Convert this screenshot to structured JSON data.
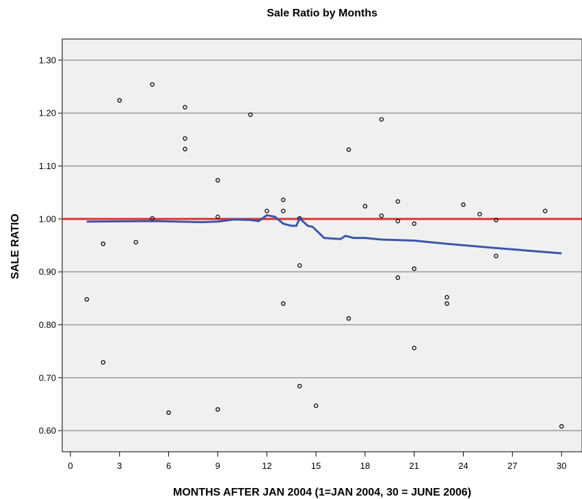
{
  "chart_data": {
    "type": "scatter",
    "title": "Sale Ratio by Months",
    "x_label": "MONTHS AFTER JAN 2004 (1=JAN 2004, 30 = JUNE 2006)",
    "y_label": "SALE RATIO",
    "xlim": [
      -0.5,
      31.25
    ],
    "ylim": [
      0.56,
      1.34
    ],
    "xticks": [
      0,
      3,
      6,
      9,
      12,
      15,
      18,
      21,
      24,
      27,
      30
    ],
    "yticks": [
      {
        "value": 0.6,
        "label": "0.60"
      },
      {
        "value": 0.7,
        "label": "0.70"
      },
      {
        "value": 0.8,
        "label": "0.80"
      },
      {
        "value": 0.9,
        "label": "0.90"
      },
      {
        "value": 1.0,
        "label": "1.00"
      },
      {
        "value": 1.1,
        "label": "1.10"
      },
      {
        "value": 1.2,
        "label": "1.20"
      },
      {
        "value": 1.3,
        "label": "1.30"
      }
    ],
    "grid": true,
    "background": "#f0f0f0",
    "series": [
      {
        "type": "scatter",
        "color": "#000000",
        "x": [
          1,
          2,
          2,
          3,
          4,
          5,
          5,
          6,
          7,
          7,
          7,
          9,
          9,
          9,
          11,
          12,
          13,
          13,
          13,
          14,
          14,
          14,
          15,
          17,
          17,
          18,
          19,
          19,
          20,
          20,
          20,
          21,
          21,
          21,
          23,
          23,
          24,
          25,
          26,
          26,
          29,
          30
        ],
        "values": [
          0.848,
          0.953,
          0.729,
          1.224,
          0.956,
          1.254,
          1.001,
          0.634,
          1.211,
          1.152,
          1.132,
          1.073,
          1.004,
          0.64,
          1.197,
          1.015,
          1.036,
          1.015,
          0.84,
          1.001,
          0.912,
          0.684,
          0.647,
          1.131,
          0.812,
          1.024,
          1.188,
          1.006,
          1.033,
          0.996,
          0.889,
          0.991,
          0.906,
          0.756,
          0.852,
          0.84,
          1.027,
          1.009,
          0.998,
          0.93,
          1.015,
          0.608
        ]
      },
      {
        "type": "line",
        "color": "#3a55a8",
        "x": [
          1,
          5,
          8,
          9,
          10,
          11,
          11.5,
          12,
          12.5,
          13,
          13.5,
          13.8,
          14,
          14.5,
          14.8,
          15.5,
          16,
          16.5,
          16.8,
          17.3,
          18,
          19,
          21,
          23,
          26,
          30
        ],
        "values": [
          0.995,
          0.996,
          0.994,
          0.995,
          0.999,
          0.998,
          0.996,
          1.007,
          1.004,
          0.991,
          0.987,
          0.987,
          1.001,
          0.987,
          0.985,
          0.964,
          0.963,
          0.962,
          0.968,
          0.964,
          0.964,
          0.961,
          0.959,
          0.953,
          0.945,
          0.935
        ]
      }
    ],
    "reference_line": {
      "value": 1.0,
      "color": "#e03030"
    }
  }
}
